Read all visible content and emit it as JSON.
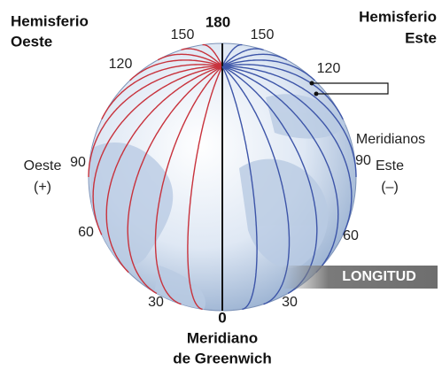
{
  "west_hemisphere": {
    "line1": "Hemisferio",
    "line2": "Oeste"
  },
  "east_hemisphere": {
    "line1": "Hemisferio",
    "line2": "Este"
  },
  "longitude_labels": {
    "top": "180",
    "west": [
      "150",
      "120",
      "90",
      "60",
      "30"
    ],
    "east": [
      "150",
      "120",
      "90",
      "60",
      "30"
    ],
    "bottom": "0"
  },
  "west_side": {
    "line1": "Oeste",
    "line2": "(+)"
  },
  "east_side": {
    "line1": "Este",
    "line2": "(–)"
  },
  "greenwich": {
    "line1": "Meridiano",
    "line2": "de Greenwich"
  },
  "meridians_label": "Meridianos",
  "badge": "LONGITUD"
}
